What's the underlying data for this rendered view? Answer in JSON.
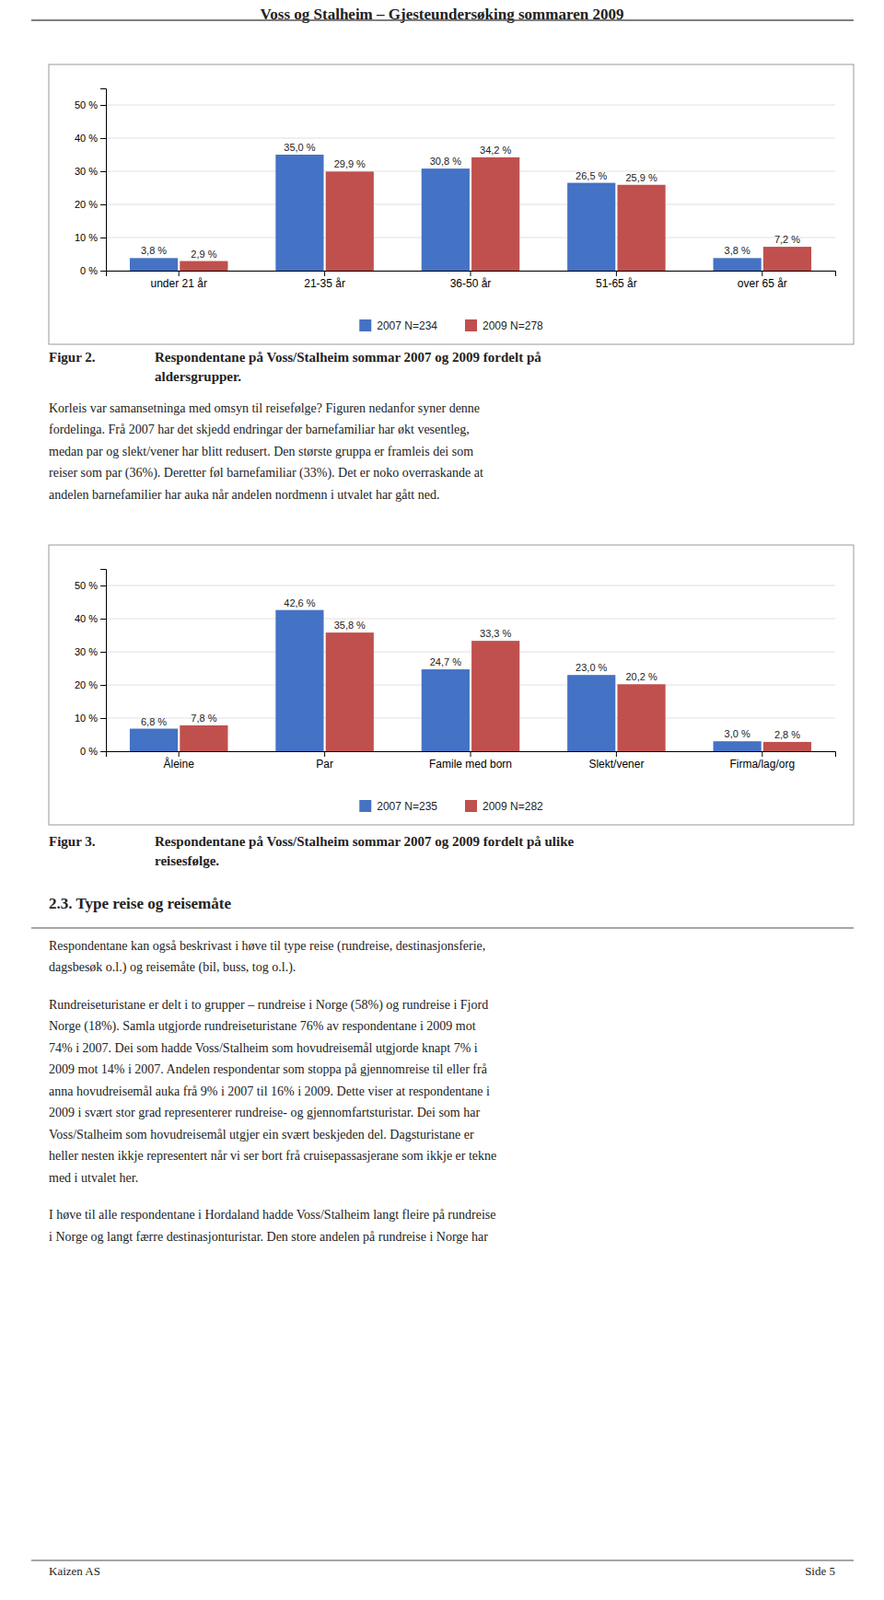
{
  "page_title": "Voss og Stalheim – Gjesteundersøking sommaren 2009",
  "chart_data": [
    {
      "type": "bar",
      "categories": [
        "under 21 år",
        "21-35 år",
        "36-50 år",
        "51-65 år",
        "over 65 år"
      ],
      "series": [
        {
          "name": "2007 N=234",
          "color": "#4472C4",
          "values": [
            3.8,
            35.0,
            30.8,
            26.5,
            3.8
          ],
          "value_labels": [
            "3,8 %",
            "35,0 %",
            "30,8 %",
            "26,5 %",
            "3,8 %"
          ]
        },
        {
          "name": "2009 N=278",
          "color": "#C0504D",
          "values": [
            2.9,
            29.9,
            34.2,
            25.9,
            7.2
          ],
          "value_labels": [
            "2,9 %",
            "29,9 %",
            "34,2 %",
            "25,9 %",
            "7,2 %"
          ]
        }
      ],
      "ylim": [
        0,
        55
      ],
      "yticks": [
        {
          "value": 0,
          "label": "0 %"
        },
        {
          "value": 10,
          "label": "10 %"
        },
        {
          "value": 20,
          "label": "20 %"
        },
        {
          "value": 30,
          "label": "30 %"
        },
        {
          "value": 40,
          "label": "40 %"
        },
        {
          "value": 50,
          "label": "50 %"
        }
      ],
      "grid": true,
      "data_labels": true,
      "legend": "bottom"
    },
    {
      "type": "bar",
      "categories": [
        "Åleine",
        "Par",
        "Famile med born",
        "Slekt/vener",
        "Firma/lag/org"
      ],
      "series": [
        {
          "name": "2007 N=235",
          "color": "#4472C4",
          "values": [
            6.8,
            42.6,
            24.7,
            23.0,
            3.0
          ],
          "value_labels": [
            "6,8 %",
            "42,6 %",
            "24,7 %",
            "23,0 %",
            "3,0 %"
          ]
        },
        {
          "name": "2009 N=282",
          "color": "#C0504D",
          "values": [
            7.8,
            35.8,
            33.3,
            20.2,
            2.8
          ],
          "value_labels": [
            "7,8 %",
            "35,8 %",
            "33,3 %",
            "20,2 %",
            "2,8 %"
          ]
        }
      ],
      "ylim": [
        0,
        55
      ],
      "yticks": [
        {
          "value": 0,
          "label": "0 %"
        },
        {
          "value": 10,
          "label": "10 %"
        },
        {
          "value": 20,
          "label": "20 %"
        },
        {
          "value": 30,
          "label": "30 %"
        },
        {
          "value": 40,
          "label": "40 %"
        },
        {
          "value": 50,
          "label": "50 %"
        }
      ],
      "grid": true,
      "data_labels": true,
      "legend": "bottom"
    }
  ],
  "captions": [
    {
      "label": "Figur 2.",
      "lines": [
        "Respondentane på Voss/Stalheim sommar 2007 og 2009 fordelt på",
        "aldersgrupper."
      ]
    },
    {
      "label": "Figur 3.",
      "lines": [
        "Respondentane på Voss/Stalheim sommar 2007 og 2009 fordelt på ulike",
        "reisesfølge."
      ]
    }
  ],
  "section_title": "2.3.   Type reise og reisemåte",
  "paragraphs": [
    [
      "Korleis var samansetninga med omsyn til reisefølge?  Figuren nedanfor syner denne",
      "fordelinga. Frå 2007 har det skjedd endringar der barnefamiliar har økt vesentleg,",
      "medan par og slekt/vener har blitt redusert.  Den største gruppa er framleis dei som",
      "reiser som par (36%).  Deretter føl barnefamiliar (33%).   Det er noko overraskande at",
      "andelen barnefamilier har auka når andelen nordmenn i utvalet har gått ned."
    ],
    [
      "Respondentane kan også beskrivast i høve til type reise (rundreise, destinasjonsferie,",
      "dagsbesøk o.l.) og reisemåte (bil, buss, tog o.l.)."
    ],
    [
      "Rundreiseturistane er delt i to grupper – rundreise i Norge (58%) og rundreise i Fjord",
      "Norge (18%).  Samla utgjorde rundreiseturistane 76% av respondentane i 2009 mot",
      "74% i 2007.  Dei som hadde Voss/Stalheim som hovudreisemål utgjorde knapt 7% i",
      "2009 mot 14% i 2007.  Andelen respondentar som stoppa på gjennomreise til eller frå",
      "anna hovudreisemål auka frå 9% i 2007 til 16% i 2009.  Dette viser at respondentane i",
      "2009 i svært stor grad representerer rundreise- og gjennomfartsturistar.  Dei som har",
      "Voss/Stalheim som hovudreisemål utgjer ein svært beskjeden del.  Dagsturistane er",
      "heller nesten ikkje representert når vi ser bort frå cruisepassasjerane som ikkje er tekne",
      "med i utvalet her."
    ],
    [
      "I høve til alle respondentane i Hordaland hadde Voss/Stalheim langt fleire på rundreise",
      "i Norge og langt færre destinasjonturistar.  Den store andelen på rundreise i Norge har"
    ]
  ],
  "footer": {
    "left": "Kaizen AS",
    "right": "Side 5"
  }
}
